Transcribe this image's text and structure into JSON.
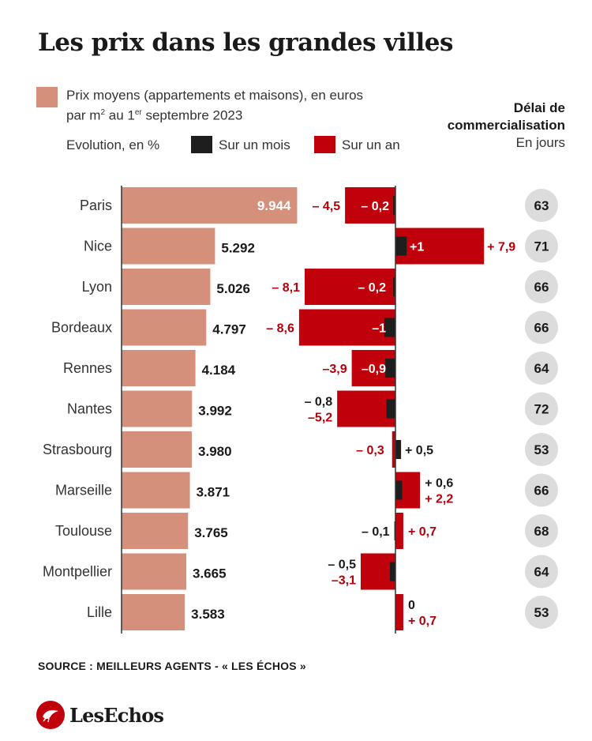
{
  "title": "Les prix dans les grandes villes",
  "legend": {
    "price_line1": "Prix moyens (appartements et maisons), en euros",
    "price_line2_a": "par m",
    "price_line2_sup2": "2",
    "price_line2_b": " au 1",
    "price_line2_supE": "er",
    "price_line2_c": " septembre 2023",
    "evolution_label": "Evolution, en %",
    "month_label": "Sur un mois",
    "year_label": "Sur un an"
  },
  "delai": {
    "heading_line1": "Délai de",
    "heading_line2": "commercialisation",
    "unit": "En jours"
  },
  "colors": {
    "price": "#d4907a",
    "month": "#1e1e1e",
    "year": "#c0000b",
    "delai_circle": "#dcdcdc",
    "year_label": "#b3000a"
  },
  "chart_data": {
    "type": "bar",
    "categories": [
      "Paris",
      "Nice",
      "Lyon",
      "Bordeaux",
      "Rennes",
      "Nantes",
      "Strasbourg",
      "Marseille",
      "Toulouse",
      "Montpellier",
      "Lille"
    ],
    "series": [
      {
        "name": "Prix moyens (appartements et maisons), en euros par m² au 1er septembre 2023",
        "values": [
          9944,
          5292,
          5026,
          4797,
          4184,
          3992,
          3980,
          3871,
          3765,
          3665,
          3583
        ],
        "labels": [
          "9.944",
          "5.292",
          "5.026",
          "4.797",
          "4.184",
          "3.992",
          "3.980",
          "3.871",
          "3.765",
          "3.665",
          "3.583"
        ]
      },
      {
        "name": "Sur un mois",
        "values": [
          -0.2,
          1,
          -0.2,
          -1,
          -0.9,
          -0.8,
          0.5,
          0.6,
          -0.1,
          -0.5,
          0
        ],
        "labels": [
          "– 0,2",
          "+1",
          "– 0,2",
          "–1",
          "–0,9",
          "– 0,8",
          "+ 0,5",
          "+ 0,6",
          "– 0,1",
          "– 0,5",
          "0"
        ]
      },
      {
        "name": "Sur un an",
        "values": [
          -4.5,
          7.9,
          -8.1,
          -8.6,
          -3.9,
          -5.2,
          -0.3,
          2.2,
          0.7,
          -3.1,
          0.7
        ],
        "labels": [
          "– 4,5",
          "+ 7,9",
          "– 8,1",
          "– 8,6",
          "–3,9",
          "–5,2",
          "– 0,3",
          "+ 2,2",
          "+ 0,7",
          "–3,1",
          "+ 0,7"
        ]
      },
      {
        "name": "Délai de commercialisation, En jours",
        "values": [
          63,
          71,
          66,
          66,
          64,
          72,
          53,
          66,
          68,
          64,
          53
        ]
      }
    ]
  },
  "source": "SOURCE : MEILLEURS AGENTS - « LES ÉCHOS »",
  "logo_text": "LesEchos"
}
